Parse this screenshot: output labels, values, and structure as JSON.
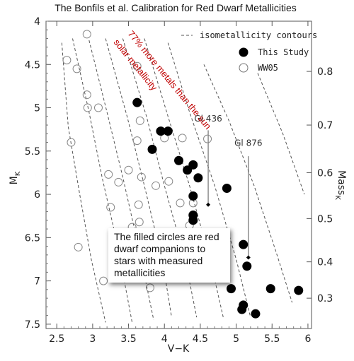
{
  "chart_data": {
    "type": "scatter",
    "title": "The Bonfils et al. Calibration for Red Dwarf Metallicities",
    "xlabel": "V−K",
    "ylabel": "M",
    "ylabel_sub": "K",
    "y2label": "Mass",
    "y2label_sub": "K",
    "xlim": [
      2.35,
      6.05
    ],
    "ylim": [
      7.55,
      4.0
    ],
    "x_ticks": [
      "2.5",
      "3",
      "3.5",
      "4",
      "4.5",
      "5",
      "5.5",
      "6"
    ],
    "y_ticks": [
      "4",
      "4.5",
      "5",
      "5.5",
      "6",
      "6.5",
      "7",
      "7.5"
    ],
    "y2_ticks": [
      {
        "label": "0.8",
        "mk": 4.58
      },
      {
        "label": "0.7",
        "mk": 5.2
      },
      {
        "label": "0.6",
        "mk": 5.75
      },
      {
        "label": "0.5",
        "mk": 6.28
      },
      {
        "label": "0.4",
        "mk": 6.78
      },
      {
        "label": "0.3",
        "mk": 7.2
      }
    ],
    "legend": {
      "placement": "top-right",
      "contours": "isometallicity contours",
      "this_study": "This Study",
      "ww05": "WW05"
    },
    "series": [
      {
        "name": "This Study",
        "marker": "filled",
        "points": [
          [
            3.62,
            4.94
          ],
          [
            4.05,
            5.27
          ],
          [
            3.83,
            5.48
          ],
          [
            3.95,
            5.27
          ],
          [
            4.2,
            5.61
          ],
          [
            4.4,
            5.66
          ],
          [
            4.47,
            5.81
          ],
          [
            4.4,
            6.02
          ],
          [
            4.32,
            5.72
          ],
          [
            4.4,
            6.24
          ],
          [
            4.4,
            6.3
          ],
          [
            4.87,
            5.93
          ],
          [
            5.1,
            6.58
          ],
          [
            5.15,
            6.83
          ],
          [
            4.93,
            7.09
          ],
          [
            5.08,
            7.33
          ],
          [
            5.1,
            7.28
          ],
          [
            5.27,
            7.38
          ],
          [
            5.48,
            7.09
          ],
          [
            5.87,
            7.11
          ]
        ]
      },
      {
        "name": "WW05",
        "marker": "open",
        "points": [
          [
            2.92,
            4.15
          ],
          [
            2.64,
            4.45
          ],
          [
            2.78,
            4.55
          ],
          [
            2.92,
            4.85
          ],
          [
            2.93,
            5.0
          ],
          [
            3.08,
            5.0
          ],
          [
            3.62,
            4.52
          ],
          [
            3.66,
            5.15
          ],
          [
            3.62,
            5.38
          ],
          [
            3.94,
            5.27
          ],
          [
            4.0,
            5.35
          ],
          [
            4.25,
            5.35
          ],
          [
            4.6,
            5.36
          ],
          [
            2.7,
            5.4
          ],
          [
            3.22,
            5.77
          ],
          [
            3.36,
            5.86
          ],
          [
            3.5,
            5.72
          ],
          [
            3.68,
            5.8
          ],
          [
            3.64,
            6.12
          ],
          [
            3.88,
            5.9
          ],
          [
            4.06,
            5.85
          ],
          [
            3.25,
            6.15
          ],
          [
            3.55,
            6.38
          ],
          [
            3.65,
            6.32
          ],
          [
            4.22,
            6.1
          ],
          [
            4.4,
            6.1
          ],
          [
            4.35,
            6.36
          ],
          [
            4.2,
            6.48
          ],
          [
            2.8,
            6.61
          ],
          [
            3.15,
            7.0
          ],
          [
            3.8,
            7.08
          ]
        ]
      }
    ],
    "isometallicity_contours": [
      [
        [
          2.57,
          4.25
        ],
        [
          2.66,
          5.22
        ],
        [
          2.82,
          6.0
        ],
        [
          2.98,
          6.75
        ],
        [
          3.18,
          7.48
        ]
      ],
      [
        [
          2.72,
          4.2
        ],
        [
          2.95,
          5.05
        ],
        [
          3.13,
          5.8
        ],
        [
          3.35,
          6.6
        ],
        [
          3.55,
          7.48
        ]
      ],
      [
        [
          2.95,
          4.22
        ],
        [
          3.2,
          5.05
        ],
        [
          3.42,
          5.8
        ],
        [
          3.65,
          6.65
        ],
        [
          3.85,
          7.45
        ]
      ],
      [
        [
          3.18,
          4.2
        ],
        [
          3.48,
          5.1
        ],
        [
          3.72,
          5.9
        ],
        [
          3.98,
          6.8
        ],
        [
          4.1,
          7.42
        ]
      ],
      [
        [
          3.42,
          4.2
        ],
        [
          3.75,
          5.1
        ],
        [
          4.0,
          5.9
        ],
        [
          4.3,
          6.8
        ],
        [
          4.45,
          7.42
        ]
      ],
      [
        [
          3.72,
          4.2
        ],
        [
          4.05,
          5.1
        ],
        [
          4.35,
          5.9
        ],
        [
          4.65,
          6.8
        ],
        [
          4.82,
          7.42
        ]
      ],
      [
        [
          4.05,
          4.25
        ],
        [
          4.35,
          5.05
        ],
        [
          4.7,
          5.9
        ],
        [
          5.0,
          6.75
        ],
        [
          5.2,
          7.42
        ]
      ],
      [
        [
          4.55,
          4.5
        ],
        [
          4.9,
          5.15
        ],
        [
          5.25,
          5.9
        ],
        [
          5.55,
          6.65
        ],
        [
          5.78,
          7.25
        ]
      ],
      [
        [
          5.3,
          4.6
        ],
        [
          5.65,
          5.3
        ],
        [
          5.95,
          6.0
        ]
      ]
    ],
    "labeled_stars": [
      {
        "label": "Gl 436",
        "point": [
          4.61,
          6.12
        ],
        "line_top_mk": 5.26,
        "text_mk": 5.16
      },
      {
        "label": "Gl 876",
        "point": [
          5.17,
          6.73
        ],
        "line_top_mk": 5.56,
        "text_mk": 5.44
      }
    ],
    "annotations": {
      "red_upper": "77% more metals than the sun",
      "red_lower": "solar metallicity",
      "callout": "The filled circles are red dwarf companions to stars with measured metallicities"
    }
  }
}
